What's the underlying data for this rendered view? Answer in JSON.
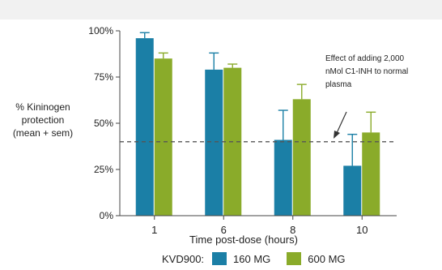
{
  "chart_data": {
    "type": "bar",
    "xlabel": "Time post-dose (hours)",
    "ylabel_lines": [
      "% Kininogen",
      "protection",
      "(mean + sem)"
    ],
    "categories": [
      "1",
      "6",
      "8",
      "10"
    ],
    "ylim": [
      0,
      100
    ],
    "yticks": [
      0,
      25,
      50,
      75,
      100
    ],
    "ytick_labels": [
      "0%",
      "25%",
      "50%",
      "75%",
      "100%"
    ],
    "series": [
      {
        "name": "160 MG",
        "color": "#1b7fa6",
        "values": [
          96,
          79,
          41,
          27
        ],
        "sem": [
          3,
          9,
          16,
          17
        ]
      },
      {
        "name": "600 MG",
        "color": "#8aab2a",
        "values": [
          85,
          80,
          63,
          45
        ],
        "sem": [
          3,
          2,
          8,
          11
        ]
      }
    ],
    "reference_line": {
      "value": 40,
      "style": "dashed"
    },
    "annotation_lines": [
      "Effect of adding 2,000",
      "nMol C1-INH to normal",
      "plasma"
    ],
    "legend_prefix": "KVD900:",
    "grid": false,
    "legend_position": "bottom"
  }
}
